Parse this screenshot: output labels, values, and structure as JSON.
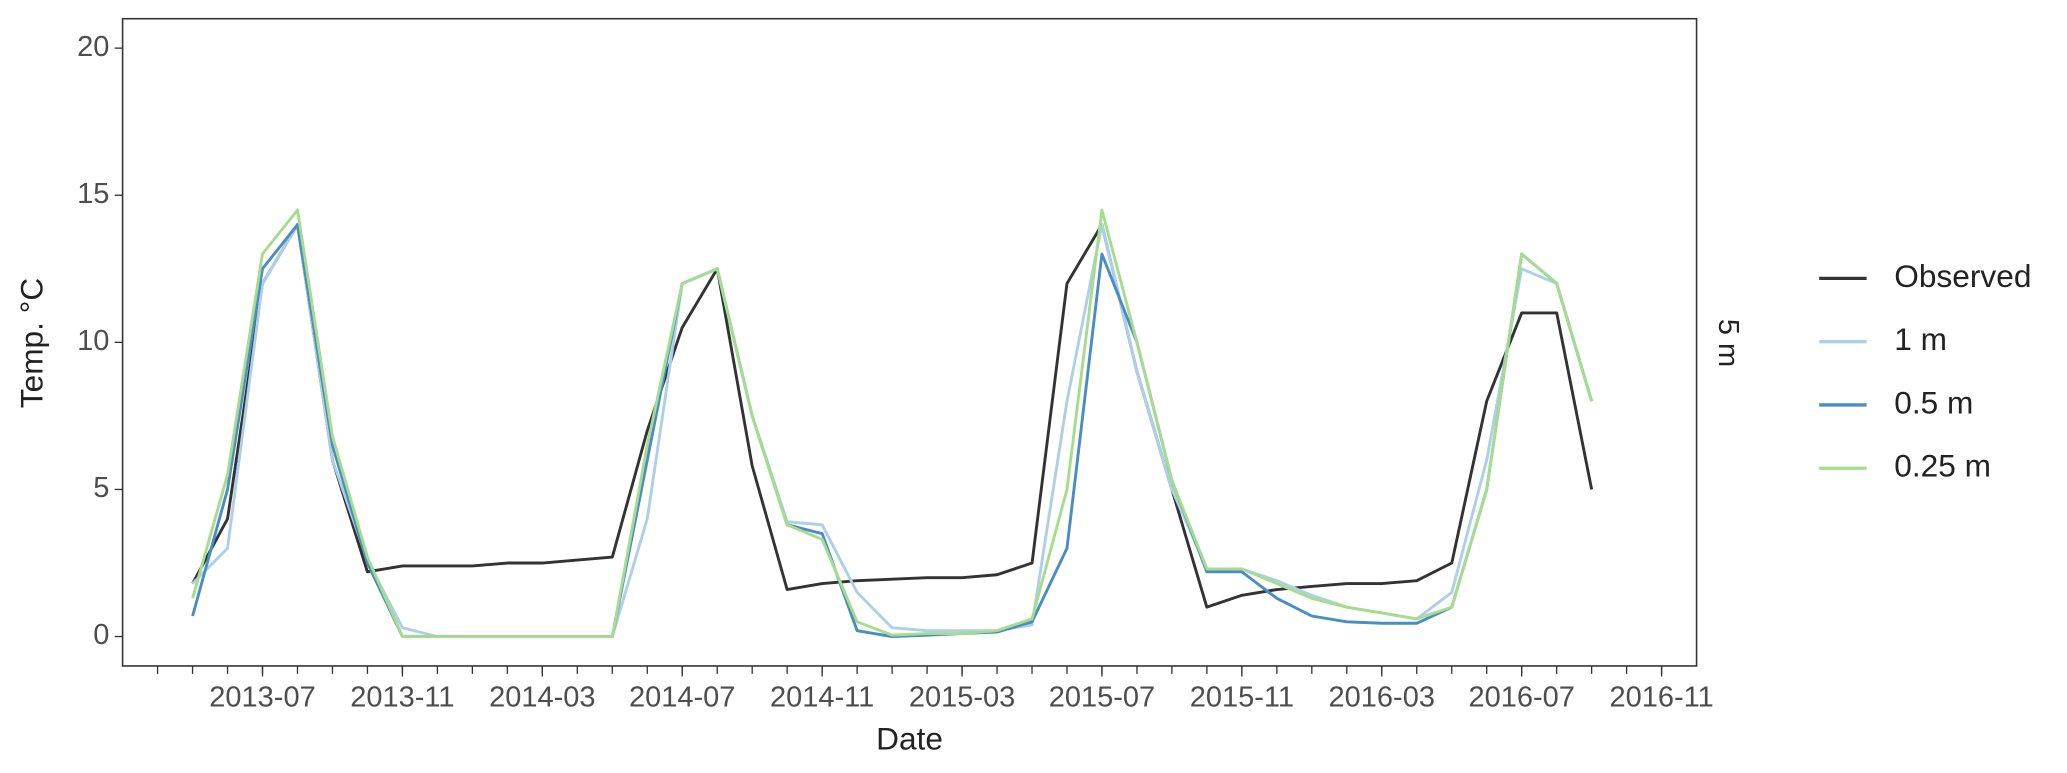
{
  "chart_data": {
    "type": "line",
    "x_label": "Date",
    "y_label": "Temp. °C",
    "panel_label": "5 m",
    "x": [
      "2013-05",
      "2013-06",
      "2013-07",
      "2013-08",
      "2013-09",
      "2013-10",
      "2013-11",
      "2013-12",
      "2014-01",
      "2014-02",
      "2014-03",
      "2014-04",
      "2014-05",
      "2014-06",
      "2014-07",
      "2014-08",
      "2014-09",
      "2014-10",
      "2014-11",
      "2014-12",
      "2015-01",
      "2015-02",
      "2015-03",
      "2015-04",
      "2015-05",
      "2015-06",
      "2015-07",
      "2015-08",
      "2015-09",
      "2015-10",
      "2015-11",
      "2015-12",
      "2016-01",
      "2016-02",
      "2016-03",
      "2016-04",
      "2016-05",
      "2016-06",
      "2016-07",
      "2016-08",
      "2016-09"
    ],
    "series": [
      {
        "name": "Observed",
        "color": "#333333",
        "values": [
          1.8,
          4,
          12,
          14,
          6,
          2.2,
          2.4,
          2.4,
          2.4,
          2.5,
          2.5,
          2.6,
          2.7,
          7,
          10.5,
          12.5,
          5.8,
          1.6,
          1.8,
          1.9,
          1.95,
          2.0,
          2.0,
          2.1,
          2.5,
          12,
          14,
          9,
          5,
          1.0,
          1.4,
          1.6,
          1.7,
          1.8,
          1.8,
          1.9,
          2.5,
          8,
          11,
          11,
          5
        ]
      },
      {
        "name": "1 m",
        "color": "#aed0e6",
        "values": [
          1.8,
          3,
          12,
          14,
          6,
          2.6,
          0.3,
          0,
          0,
          0,
          0,
          0,
          0,
          4,
          12,
          12.5,
          7.5,
          3.9,
          3.8,
          1.5,
          0.3,
          0.2,
          0.2,
          0.2,
          0.4,
          8,
          14,
          9,
          5,
          2.3,
          2.3,
          1.9,
          1.4,
          1.0,
          0.8,
          0.6,
          1.5,
          6,
          12.5,
          12,
          8
        ]
      },
      {
        "name": "0.5 m",
        "color": "#4a8cc4",
        "values": [
          0.7,
          5,
          12.5,
          14,
          6.5,
          2.5,
          0,
          0,
          0,
          0,
          0,
          0,
          0,
          6,
          12,
          12.5,
          7.5,
          3.8,
          3.5,
          0.2,
          0,
          0.05,
          0.1,
          0.15,
          0.5,
          3,
          13,
          10,
          5.3,
          2.2,
          2.2,
          1.3,
          0.7,
          0.5,
          0.45,
          0.45,
          1,
          5,
          13,
          12,
          8
        ]
      },
      {
        "name": "0.25 m",
        "color": "#a6dc8e",
        "values": [
          1.3,
          5.5,
          13,
          14.5,
          6.8,
          2.7,
          0,
          0,
          0,
          0,
          0,
          0,
          0,
          6.5,
          12,
          12.5,
          7.5,
          3.8,
          3.3,
          0.5,
          0.05,
          0.1,
          0.1,
          0.2,
          0.6,
          5,
          14.5,
          10,
          5.3,
          2.3,
          2.3,
          1.8,
          1.3,
          1.0,
          0.8,
          0.6,
          1.0,
          5,
          13,
          12,
          8
        ]
      }
    ],
    "xlim": [
      "2013-03",
      "2016-12"
    ],
    "xticks": [
      "2013-07",
      "2013-11",
      "2014-03",
      "2014-07",
      "2014-11",
      "2015-03",
      "2015-07",
      "2015-11",
      "2016-03",
      "2016-07",
      "2016-11"
    ],
    "ylim": [
      -1,
      21
    ],
    "yticks": [
      0,
      5,
      10,
      15,
      20
    ],
    "grid": false,
    "legend": "right"
  }
}
